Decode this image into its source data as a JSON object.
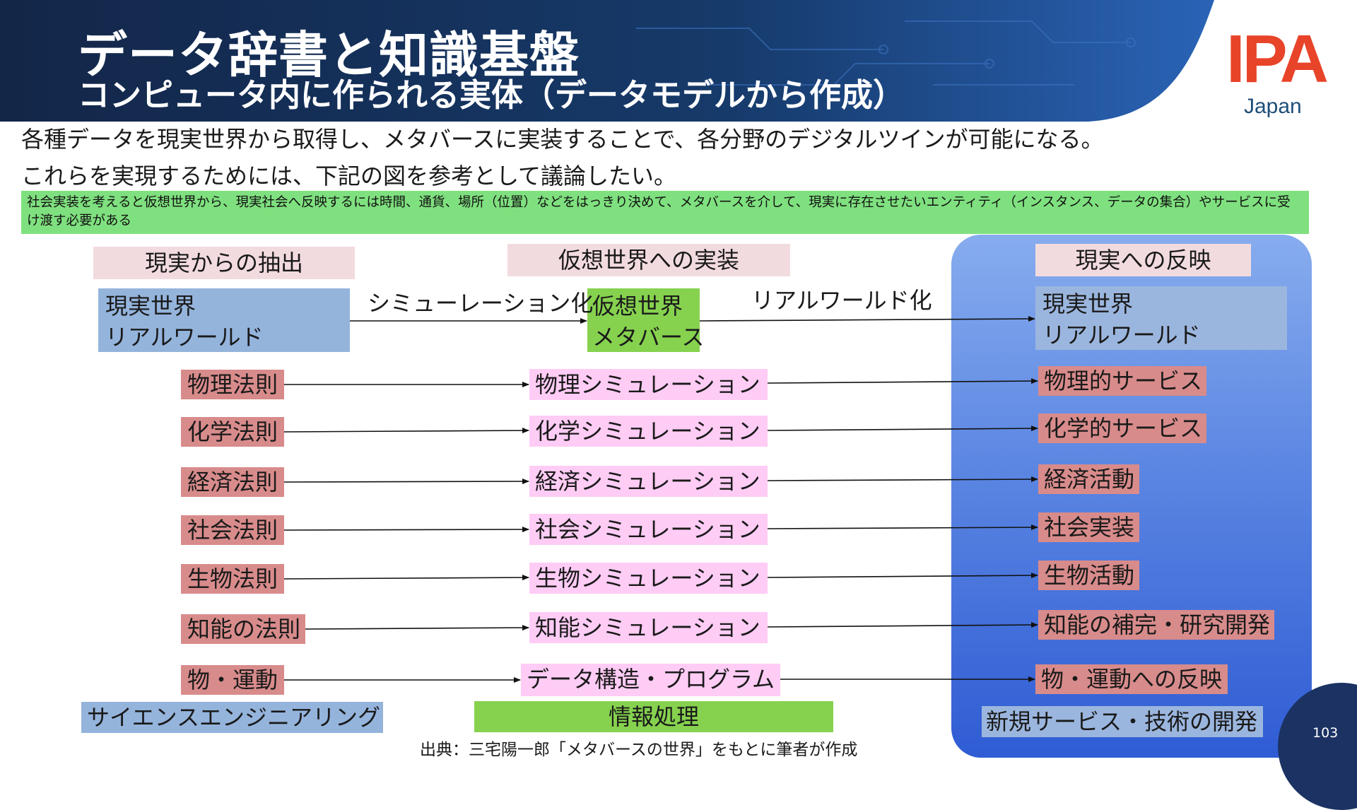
{
  "header": {
    "title": "データ辞書と知識基盤",
    "subtitle": "コンピュータ内に作られる実体（データモデルから作成）",
    "logo_text": "IPA",
    "logo_subtext": "Japan",
    "band_color": "#14284a",
    "logo_color": "#e8442a"
  },
  "intro": {
    "line1": "各種データを現実世界から取得し、メタバースに実装することで、各分野のデジタルツインが可能になる。",
    "line2": "これらを実現するためには、下記の図を参考として議論したい。"
  },
  "note": "社会実装を考えると仮想世界から、現実社会へ反映するには時間、通貨、場所（位置）などをはっきり決めて、メタバースを介して、現実に存在させたいエンティティ（インスタンス、データの集合）やサービスに受け渡す必要がある",
  "diagram": {
    "col_headers": [
      "現実からの抽出",
      "仮想世界への実装",
      "現実への反映"
    ],
    "source": {
      "line1": "現実世界",
      "line2": "リアルワールド"
    },
    "virtual": {
      "line1": "仮想世界",
      "line2": "メタバース"
    },
    "target": {
      "line1": "現実世界",
      "line2": "リアルワールド"
    },
    "edge_labels": [
      "シミューレーション化",
      "リアルワールド化"
    ],
    "laws": [
      "物理法則",
      "化学法則",
      "経済法則",
      "社会法則",
      "生物法則",
      "知能の法則",
      "物・運動"
    ],
    "simulations": [
      "物理シミュレーション",
      "化学シミュレーション",
      "経済シミュレーション",
      "社会シミュレーション",
      "生物シミュレーション",
      "知能シミュレーション",
      "データ構造・プログラム"
    ],
    "services": [
      "物理的サービス",
      "化学的サービス",
      "経済活動",
      "社会実装",
      "生物活動",
      "知能の補完・研究開発",
      "物・運動への反映"
    ],
    "footers": [
      "サイエンスエンジニアリング",
      "情報処理",
      "新規サービス・技術の開発"
    ],
    "colors": {
      "law": "#d88b8b",
      "simulation": "#ffccf5",
      "header": "#f2dbdf",
      "world": "#94b4dc",
      "metaverse": "#86d24f",
      "note": "#7fe07f",
      "panel": "#5b86e2"
    }
  },
  "footer": {
    "source_note": "出典：三宅陽一郎「メタバースの世界」をもとに筆者が作成",
    "page_number": "103"
  }
}
